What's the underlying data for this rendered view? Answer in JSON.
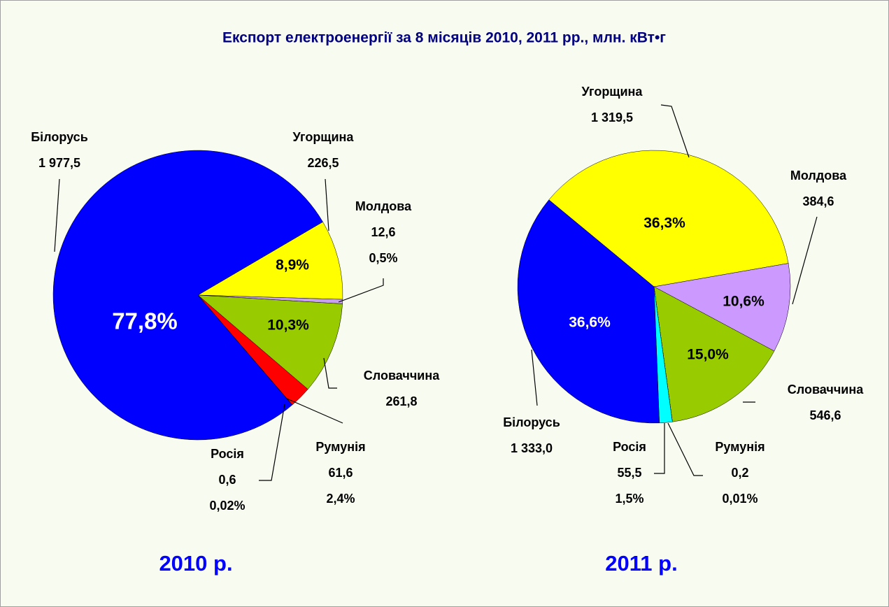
{
  "title": "Експорт електроенергії за 8 місяців 2010, 2011 рр., млн. кВт•г",
  "chart_data": [
    {
      "type": "pie",
      "title": "2010 р.",
      "categories": [
        "Угорщина",
        "Молдова",
        "Словаччина",
        "Румунія",
        "Росія",
        "Білорусь"
      ],
      "values": [
        226.5,
        12.6,
        261.8,
        61.6,
        0.6,
        1977.5
      ],
      "value_labels": [
        "226,5",
        "12,6",
        "261,8",
        "61,6",
        "0,6",
        "1 977,5"
      ],
      "percents": [
        8.9,
        0.5,
        10.3,
        2.4,
        0.02,
        77.8
      ],
      "percent_labels": [
        "8,9%",
        "0,5%",
        "10,3%",
        "2,4%",
        "0,02%",
        "77,8%"
      ],
      "colors": [
        "#ffff00",
        "#c8a0f0",
        "#99cc00",
        "#ff0000",
        "#00ffff",
        "#0000ff"
      ]
    },
    {
      "type": "pie",
      "title": "2011 р.",
      "categories": [
        "Угорщина",
        "Молдова",
        "Словаччина",
        "Румунія",
        "Росія",
        "Білорусь"
      ],
      "values": [
        1319.5,
        384.6,
        546.6,
        0.2,
        55.5,
        1333.0
      ],
      "value_labels": [
        "1 319,5",
        "384,6",
        "546,6",
        "0,2",
        "55,5",
        "1 333,0"
      ],
      "percents": [
        36.3,
        10.6,
        15.0,
        0.01,
        1.5,
        36.6
      ],
      "percent_labels": [
        "36,3%",
        "10,6%",
        "15,0%",
        "0,01%",
        "1,5%",
        "36,6%"
      ],
      "colors": [
        "#ffff00",
        "#cc99ff",
        "#99cc00",
        "#ff0000",
        "#00ffff",
        "#0000ff"
      ]
    }
  ]
}
